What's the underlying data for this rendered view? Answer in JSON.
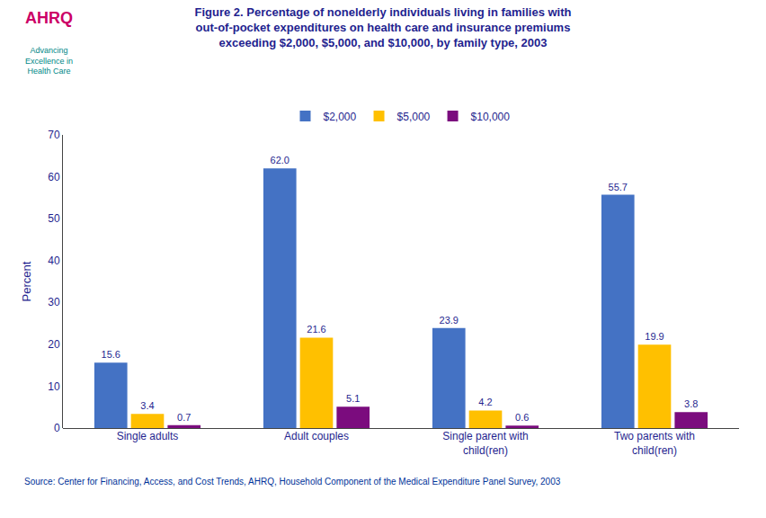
{
  "chart_data": {
    "type": "bar",
    "title": "Figure 2. Percentage of nonelderly individuals living in families with\nout-of-pocket expenditures on health care and insurance premiums\nexceeding $2,000, $5,000, and $10,000, by family type, 2003",
    "categories": [
      "Single adults",
      "Adult couples",
      "Single parent with\nchild(ren)",
      "Two parents with\nchild(ren)"
    ],
    "series": [
      {
        "name": "$2,000",
        "color": "#4472C4",
        "values": [
          15.6,
          62.0,
          23.9,
          55.7
        ],
        "value_labels": [
          "15.6",
          "62.0",
          "23.9",
          "55.7"
        ]
      },
      {
        "name": "$5,000",
        "color": "#FFC000",
        "values": [
          3.4,
          21.6,
          4.2,
          19.9
        ],
        "value_labels": [
          "3.4",
          "21.6",
          "4.2",
          "19.9"
        ]
      },
      {
        "name": "$10,000",
        "color": "#7B0C7E",
        "values": [
          0.7,
          5.1,
          0.6,
          3.8
        ],
        "value_labels": [
          "0.7",
          "5.1",
          "0.6",
          "3.8"
        ]
      }
    ],
    "ylabel": "Percent",
    "ylim": [
      0,
      70
    ],
    "yticks": [
      0,
      10,
      20,
      30,
      40,
      50,
      60,
      70
    ],
    "grid": false,
    "legend": "top",
    "data_labels": true,
    "annotations": [
      {
        "text": "AHRQ"
      },
      {
        "text": "Advancing\nExcellence in\nHealth Care"
      },
      {
        "text": "Source: Center for Financing, Access, and Cost Trends, AHRQ, Household Component of the Medical Expenditure Panel Survey, 2003"
      }
    ]
  }
}
